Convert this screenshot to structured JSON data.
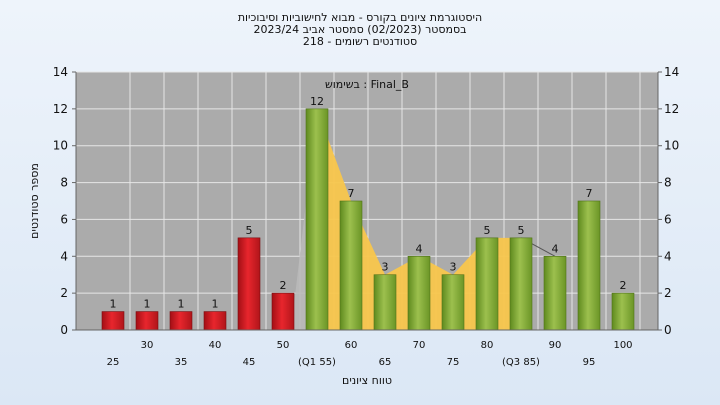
{
  "header": {
    "line1": "היסטוגרמת ציונים בקורס - מבוא לחישוביות וסיבוכיות",
    "line2": "בסמסטר  (02/2023)  סמסטר אביב 2023/24",
    "line3": "סטודנטים רשומים - 218"
  },
  "chart_data": {
    "type": "bar",
    "title": "היסטוגרמת ציונים בקורס - מבוא לחישוביות וסיבוכיות",
    "subtitle": "בסמסטר  (02/2023)  סמסטר אביב 2023/24 | סטודנטים רשומים - 218",
    "annotation": "בשימוש : Final_B",
    "xlabel": "טווח ציונים",
    "ylabel": "מספר סטודנטים",
    "ylim": [
      0,
      14
    ],
    "yticks": [
      0,
      2,
      4,
      6,
      8,
      10,
      12,
      14
    ],
    "grid": true,
    "categories": [
      "25",
      "30",
      "35",
      "40",
      "45",
      "50",
      "55",
      "60",
      "65",
      "70",
      "75",
      "80",
      "85",
      "90",
      "95",
      "100"
    ],
    "category_labels": [
      "25",
      "30",
      "35",
      "40",
      "45",
      "50",
      "(Q1 55)",
      "60",
      "65",
      "70",
      "75",
      "80",
      "(Q3 85)",
      "90",
      "95",
      "100"
    ],
    "values": [
      1,
      1,
      1,
      1,
      5,
      2,
      12,
      7,
      3,
      4,
      3,
      5,
      5,
      4,
      7,
      2
    ],
    "fail_color": "#e8262d",
    "pass_color": "#9cc04e",
    "area_color": "#f8c64c",
    "band_color": "#b9b9b9",
    "plot_bg": "#ababab"
  }
}
